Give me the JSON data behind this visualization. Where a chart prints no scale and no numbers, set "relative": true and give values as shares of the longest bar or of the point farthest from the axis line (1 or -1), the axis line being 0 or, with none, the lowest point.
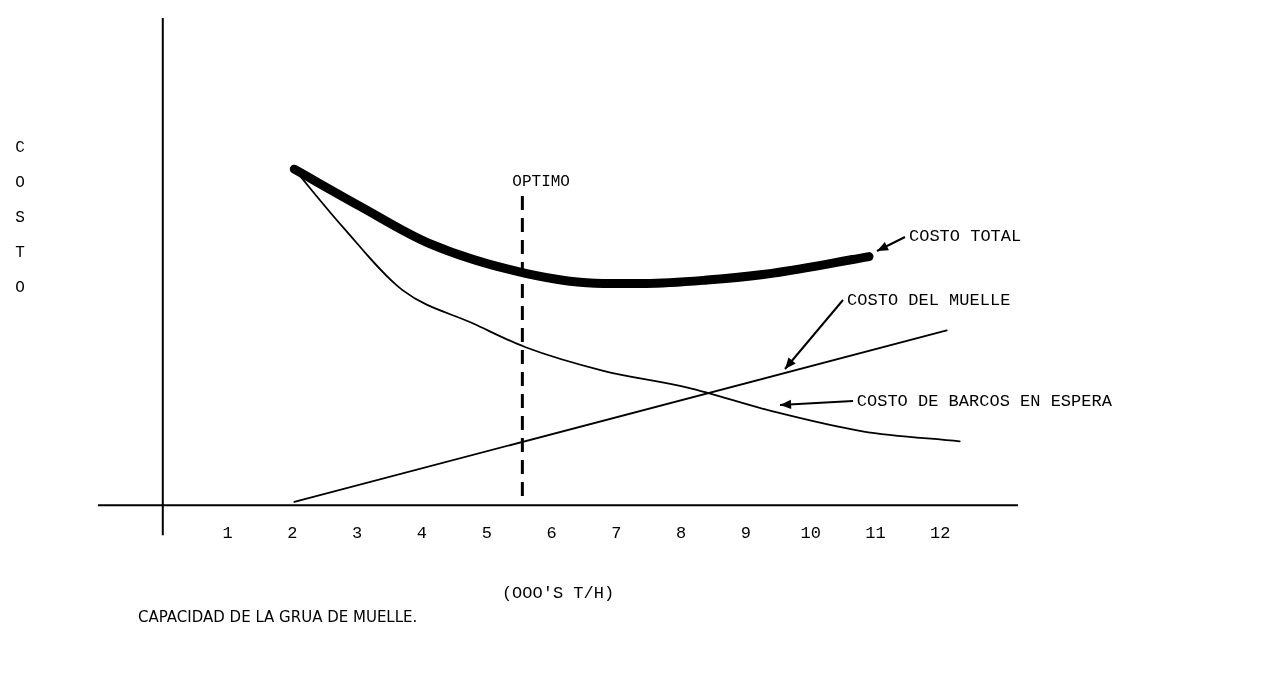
{
  "chart_data": {
    "type": "line",
    "relative": true,
    "ylabel": "COSTO",
    "xlabel": "(OOO'S T/H)",
    "xlim": [
      -1,
      13.2
    ],
    "xticks": [
      1,
      2,
      3,
      4,
      5,
      6,
      7,
      8,
      9,
      10,
      11,
      12
    ],
    "grid": false,
    "legend": "right",
    "marker": "none",
    "line_style": "solid",
    "series": [
      {
        "name": "COSTO TOTAL",
        "color": "#000000",
        "x": [
          2.03,
          3.04,
          4.1,
          5.6,
          6.8,
          7.45,
          8.4,
          9.4,
          10.9
        ],
        "values": [
          1,
          0.89,
          0.78,
          0.69,
          0.66,
          0.66,
          0.67,
          0.69,
          0.74
        ]
      },
      {
        "name": "COSTO DEL MUELLE",
        "color": "#000000",
        "x": [
          2.03,
          12.1
        ],
        "values": [
          0.01,
          0.52
        ]
      },
      {
        "name": "COSTO DE BARCOS EN ESPERA",
        "color": "#000000",
        "x": [
          2.03,
          2.77,
          3.7,
          4.8,
          5.6,
          6.8,
          8.1,
          9.4,
          10.8,
          12.3
        ],
        "values": [
          1,
          0.83,
          0.64,
          0.54,
          0.47,
          0.4,
          0.35,
          0.28,
          0.22,
          0.19
        ]
      }
    ],
    "ref_lines": [
      {
        "axis": "x",
        "value": 5.55,
        "label": "OPTIMO",
        "line_style": "dashed",
        "color": "#000000"
      }
    ],
    "annotations": [
      "CAPACIDAD DE LA GRUA DE MUELLE."
    ]
  }
}
